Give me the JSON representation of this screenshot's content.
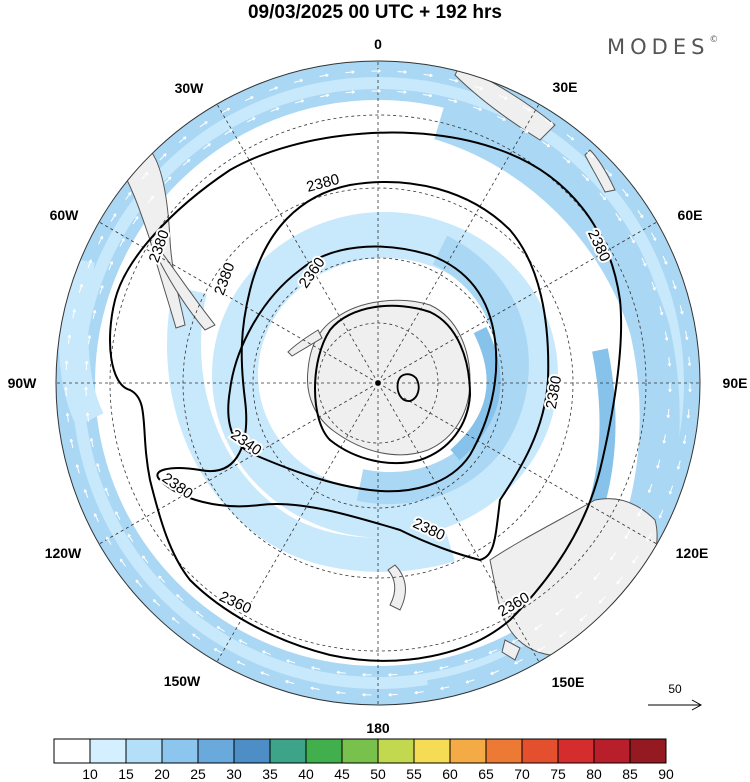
{
  "title": "09/03/2025  00 UTC  + 192 hrs",
  "logo": "MODES",
  "logo_mark": "©",
  "longitude_labels": [
    "0",
    "30E",
    "60E",
    "90E",
    "120E",
    "150E",
    "180",
    "150W",
    "120W",
    "90W",
    "60W",
    "30W"
  ],
  "contours": [
    {
      "label": "2340",
      "level": 2340
    },
    {
      "label": "2360",
      "level": 2360
    },
    {
      "label": "2380",
      "level": 2380
    }
  ],
  "contour_label_instances": [
    "2380",
    "2380",
    "2380",
    "2380",
    "2380",
    "2380",
    "2380",
    "2360",
    "2360",
    "2360",
    "2340"
  ],
  "vector_reference": {
    "value": "50"
  },
  "colorbar": {
    "ticks": [
      "10",
      "15",
      "20",
      "25",
      "30",
      "35",
      "40",
      "45",
      "50",
      "55",
      "60",
      "65",
      "70",
      "75",
      "80",
      "85",
      "90"
    ],
    "colors": [
      "#ffffff",
      "#d4efff",
      "#b4dff8",
      "#8cc6ee",
      "#6aa9dc",
      "#4d8ec6",
      "#3da48a",
      "#41b04c",
      "#78c14c",
      "#c1d84f",
      "#f6dc55",
      "#f4ab45",
      "#ec7a35",
      "#e4502e",
      "#d52d2d",
      "#b91f2b",
      "#941920"
    ]
  },
  "map_colors": {
    "land": "#efefef",
    "coast": "#555555",
    "jet_light": "#c8e8fb",
    "jet_mid": "#a9d7f4",
    "jet_strong": "#86c2ea"
  }
}
